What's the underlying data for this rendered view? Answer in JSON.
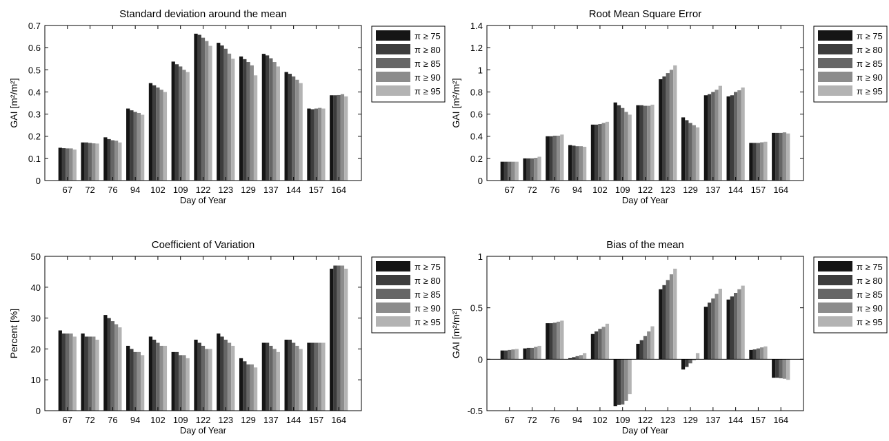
{
  "colors": {
    "series": [
      "#151515",
      "#3d3d3d",
      "#666666",
      "#8c8c8c",
      "#b3b3b3"
    ],
    "axis": "#000000",
    "background": "#ffffff"
  },
  "chart_data": [
    {
      "type": "bar",
      "title": "Standard deviation around the mean",
      "xlabel": "Day of Year",
      "ylabel": "GAI [m²/m²]",
      "ylim": [
        0,
        0.7
      ],
      "yticks": [
        0,
        0.1,
        0.2,
        0.3,
        0.4,
        0.5,
        0.6,
        0.7
      ],
      "ytick_labels": [
        "0",
        "0.1",
        "0.2",
        "0.3",
        "0.4",
        "0.5",
        "0.6",
        "0.7"
      ],
      "grid": false,
      "legend_position": "outside-right",
      "categories": [
        "67",
        "72",
        "76",
        "94",
        "102",
        "109",
        "122",
        "123",
        "129",
        "137",
        "144",
        "157",
        "164"
      ],
      "series": [
        {
          "name": "π ≥ 75",
          "values": [
            0.148,
            0.172,
            0.195,
            0.325,
            0.44,
            0.537,
            0.663,
            0.622,
            0.56,
            0.572,
            0.49,
            0.325,
            0.385
          ]
        },
        {
          "name": "π ≥ 80",
          "values": [
            0.146,
            0.172,
            0.187,
            0.317,
            0.43,
            0.525,
            0.658,
            0.61,
            0.548,
            0.565,
            0.482,
            0.322,
            0.385
          ]
        },
        {
          "name": "π ≥ 85",
          "values": [
            0.145,
            0.17,
            0.182,
            0.31,
            0.42,
            0.515,
            0.645,
            0.595,
            0.535,
            0.552,
            0.47,
            0.325,
            0.386
          ]
        },
        {
          "name": "π ≥ 90",
          "values": [
            0.145,
            0.168,
            0.18,
            0.305,
            0.41,
            0.5,
            0.63,
            0.573,
            0.52,
            0.535,
            0.455,
            0.328,
            0.39
          ]
        },
        {
          "name": "π ≥ 95",
          "values": [
            0.14,
            0.167,
            0.172,
            0.297,
            0.4,
            0.49,
            0.608,
            0.55,
            0.475,
            0.515,
            0.44,
            0.325,
            0.38
          ]
        }
      ]
    },
    {
      "type": "bar",
      "title": "Root Mean Square Error",
      "xlabel": "Day of Year",
      "ylabel": "GAI [m²/m²]",
      "ylim": [
        0,
        1.4
      ],
      "yticks": [
        0,
        0.2,
        0.4,
        0.6,
        0.8,
        1,
        1.2,
        1.4
      ],
      "ytick_labels": [
        "0",
        "0.2",
        "0.4",
        "0.6",
        "0.8",
        "1",
        "1.2",
        "1.4"
      ],
      "grid": false,
      "legend_position": "outside-right",
      "categories": [
        "67",
        "72",
        "76",
        "94",
        "102",
        "109",
        "122",
        "123",
        "129",
        "137",
        "144",
        "157",
        "164"
      ],
      "series": [
        {
          "name": "π ≥ 75",
          "values": [
            0.17,
            0.2,
            0.4,
            0.32,
            0.505,
            0.705,
            0.68,
            0.915,
            0.57,
            0.77,
            0.76,
            0.34,
            0.43
          ]
        },
        {
          "name": "π ≥ 80",
          "values": [
            0.17,
            0.2,
            0.4,
            0.315,
            0.505,
            0.68,
            0.68,
            0.94,
            0.545,
            0.78,
            0.77,
            0.34,
            0.43
          ]
        },
        {
          "name": "π ≥ 85",
          "values": [
            0.17,
            0.2,
            0.405,
            0.31,
            0.51,
            0.655,
            0.675,
            0.97,
            0.52,
            0.8,
            0.8,
            0.34,
            0.43
          ]
        },
        {
          "name": "π ≥ 90",
          "values": [
            0.17,
            0.205,
            0.405,
            0.31,
            0.52,
            0.62,
            0.675,
            1.0,
            0.5,
            0.82,
            0.815,
            0.345,
            0.435
          ]
        },
        {
          "name": "π ≥ 95",
          "values": [
            0.17,
            0.215,
            0.415,
            0.305,
            0.53,
            0.595,
            0.685,
            1.04,
            0.48,
            0.855,
            0.84,
            0.35,
            0.425
          ]
        }
      ]
    },
    {
      "type": "bar",
      "title": "Coefficient of Variation",
      "xlabel": "Day of Year",
      "ylabel": "Percent [%]",
      "ylim": [
        0,
        50
      ],
      "yticks": [
        0,
        10,
        20,
        30,
        40,
        50
      ],
      "ytick_labels": [
        "0",
        "10",
        "20",
        "30",
        "40",
        "50"
      ],
      "grid": false,
      "legend_position": "outside-right",
      "categories": [
        "67",
        "72",
        "76",
        "94",
        "102",
        "109",
        "122",
        "123",
        "129",
        "137",
        "144",
        "157",
        "164"
      ],
      "series": [
        {
          "name": "π ≥ 75",
          "values": [
            26,
            25,
            31,
            21,
            24,
            19,
            23,
            25,
            17,
            22,
            23,
            22,
            46
          ]
        },
        {
          "name": "π ≥ 80",
          "values": [
            25,
            24,
            30,
            20,
            23,
            19,
            22,
            24,
            16,
            22,
            23,
            22,
            47
          ]
        },
        {
          "name": "π ≥ 85",
          "values": [
            25,
            24,
            29,
            19,
            22,
            18,
            21,
            23,
            15,
            21,
            22,
            22,
            47
          ]
        },
        {
          "name": "π ≥ 90",
          "values": [
            25,
            24,
            28,
            19,
            21,
            18,
            20,
            22,
            15,
            20,
            21,
            22,
            47
          ]
        },
        {
          "name": "π ≥ 95",
          "values": [
            24,
            23,
            27,
            18,
            21,
            17,
            20,
            21,
            14,
            19,
            20,
            22,
            46
          ]
        }
      ]
    },
    {
      "type": "bar",
      "title": "Bias of the mean",
      "xlabel": "Day of Year",
      "ylabel": "GAI [m²/m²]",
      "ylim": [
        -0.5,
        1
      ],
      "yticks": [
        -0.5,
        0,
        0.5,
        1
      ],
      "ytick_labels": [
        "-0.5",
        "0",
        "0.5",
        "1"
      ],
      "grid": false,
      "legend_position": "outside-right",
      "categories": [
        "67",
        "72",
        "76",
        "94",
        "102",
        "109",
        "122",
        "123",
        "129",
        "137",
        "144",
        "157",
        "164"
      ],
      "series": [
        {
          "name": "π ≥ 75",
          "values": [
            0.085,
            0.105,
            0.35,
            0.01,
            0.245,
            -0.455,
            0.15,
            0.68,
            -0.1,
            0.51,
            0.58,
            0.09,
            -0.18
          ]
        },
        {
          "name": "π ≥ 80",
          "values": [
            0.085,
            0.11,
            0.35,
            0.02,
            0.27,
            -0.445,
            0.185,
            0.72,
            -0.075,
            0.55,
            0.61,
            0.095,
            -0.18
          ]
        },
        {
          "name": "π ≥ 85",
          "values": [
            0.09,
            0.11,
            0.355,
            0.03,
            0.295,
            -0.44,
            0.225,
            0.77,
            -0.04,
            0.59,
            0.645,
            0.105,
            -0.185
          ]
        },
        {
          "name": "π ≥ 90",
          "values": [
            0.095,
            0.12,
            0.365,
            0.04,
            0.315,
            -0.405,
            0.27,
            0.825,
            -0.01,
            0.635,
            0.68,
            0.115,
            -0.19
          ]
        },
        {
          "name": "π ≥ 95",
          "values": [
            0.1,
            0.13,
            0.375,
            0.06,
            0.345,
            -0.34,
            0.32,
            0.88,
            0.06,
            0.685,
            0.715,
            0.125,
            -0.2
          ]
        }
      ]
    }
  ]
}
